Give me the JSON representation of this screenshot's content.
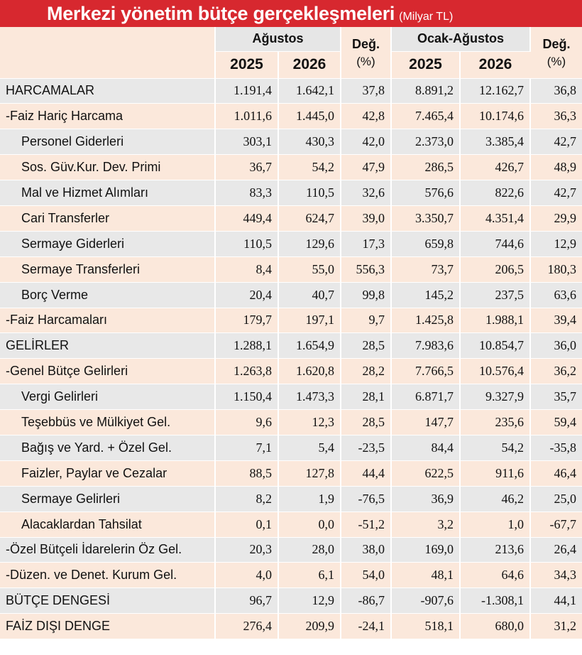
{
  "title": "Merkezi yönetim bütçe gerçekleşmeleri",
  "unit": "(Milyar TL)",
  "headers": {
    "group_month": "Ağustos",
    "group_ytd": "Ocak-Ağustos",
    "change_label": "Değ.",
    "change_unit": "(%)",
    "year_a": "2025",
    "year_b": "2026"
  },
  "rows": [
    {
      "label": "HARCAMALAR",
      "indent": false,
      "m2025": "1.191,4",
      "m2026": "1.642,1",
      "mchg": "37,8",
      "y2025": "8.891,2",
      "y2026": "12.162,7",
      "ychg": "36,8"
    },
    {
      "label": "-Faiz Hariç Harcama",
      "indent": false,
      "m2025": "1.011,6",
      "m2026": "1.445,0",
      "mchg": "42,8",
      "y2025": "7.465,4",
      "y2026": "10.174,6",
      "ychg": "36,3"
    },
    {
      "label": "Personel Giderleri",
      "indent": true,
      "m2025": "303,1",
      "m2026": "430,3",
      "mchg": "42,0",
      "y2025": "2.373,0",
      "y2026": "3.385,4",
      "ychg": "42,7"
    },
    {
      "label": "Sos. Güv.Kur. Dev. Primi",
      "indent": true,
      "m2025": "36,7",
      "m2026": "54,2",
      "mchg": "47,9",
      "y2025": "286,5",
      "y2026": "426,7",
      "ychg": "48,9"
    },
    {
      "label": "Mal ve Hizmet Alımları",
      "indent": true,
      "m2025": "83,3",
      "m2026": "110,5",
      "mchg": "32,6",
      "y2025": "576,6",
      "y2026": "822,6",
      "ychg": "42,7"
    },
    {
      "label": "Cari Transferler",
      "indent": true,
      "m2025": "449,4",
      "m2026": "624,7",
      "mchg": "39,0",
      "y2025": "3.350,7",
      "y2026": "4.351,4",
      "ychg": "29,9"
    },
    {
      "label": "Sermaye Giderleri",
      "indent": true,
      "m2025": "110,5",
      "m2026": "129,6",
      "mchg": "17,3",
      "y2025": "659,8",
      "y2026": "744,6",
      "ychg": "12,9"
    },
    {
      "label": "Sermaye Transferleri",
      "indent": true,
      "m2025": "8,4",
      "m2026": "55,0",
      "mchg": "556,3",
      "y2025": "73,7",
      "y2026": "206,5",
      "ychg": "180,3"
    },
    {
      "label": "Borç Verme",
      "indent": true,
      "m2025": "20,4",
      "m2026": "40,7",
      "mchg": "99,8",
      "y2025": "145,2",
      "y2026": "237,5",
      "ychg": "63,6"
    },
    {
      "label": "-Faiz Harcamaları",
      "indent": false,
      "m2025": "179,7",
      "m2026": "197,1",
      "mchg": "9,7",
      "y2025": "1.425,8",
      "y2026": "1.988,1",
      "ychg": "39,4"
    },
    {
      "label": "GELİRLER",
      "indent": false,
      "m2025": "1.288,1",
      "m2026": "1.654,9",
      "mchg": "28,5",
      "y2025": "7.983,6",
      "y2026": "10.854,7",
      "ychg": "36,0"
    },
    {
      "label": "-Genel Bütçe Gelirleri",
      "indent": false,
      "m2025": "1.263,8",
      "m2026": "1.620,8",
      "mchg": "28,2",
      "y2025": "7.766,5",
      "y2026": "10.576,4",
      "ychg": "36,2"
    },
    {
      "label": "Vergi Gelirleri",
      "indent": true,
      "m2025": "1.150,4",
      "m2026": "1.473,3",
      "mchg": "28,1",
      "y2025": "6.871,7",
      "y2026": "9.327,9",
      "ychg": "35,7"
    },
    {
      "label": "Teşebbüs ve Mülkiyet Gel.",
      "indent": true,
      "m2025": "9,6",
      "m2026": "12,3",
      "mchg": "28,5",
      "y2025": "147,7",
      "y2026": "235,6",
      "ychg": "59,4"
    },
    {
      "label": "Bağış ve Yard. + Özel Gel.",
      "indent": true,
      "m2025": "7,1",
      "m2026": "5,4",
      "mchg": "-23,5",
      "y2025": "84,4",
      "y2026": "54,2",
      "ychg": "-35,8"
    },
    {
      "label": "Faizler, Paylar ve Cezalar",
      "indent": true,
      "m2025": "88,5",
      "m2026": "127,8",
      "mchg": "44,4",
      "y2025": "622,5",
      "y2026": "911,6",
      "ychg": "46,4"
    },
    {
      "label": "Sermaye Gelirleri",
      "indent": true,
      "m2025": "8,2",
      "m2026": "1,9",
      "mchg": "-76,5",
      "y2025": "36,9",
      "y2026": "46,2",
      "ychg": "25,0"
    },
    {
      "label": "Alacaklardan Tahsilat",
      "indent": true,
      "m2025": "0,1",
      "m2026": "0,0",
      "mchg": "-51,2",
      "y2025": "3,2",
      "y2026": "1,0",
      "ychg": "-67,7"
    },
    {
      "label": "-Özel Bütçeli İdarelerin Öz Gel.",
      "indent": false,
      "m2025": "20,3",
      "m2026": "28,0",
      "mchg": "38,0",
      "y2025": "169,0",
      "y2026": "213,6",
      "ychg": "26,4"
    },
    {
      "label": "-Düzen. ve Denet. Kurum Gel.",
      "indent": false,
      "m2025": "4,0",
      "m2026": "6,1",
      "mchg": "54,0",
      "y2025": "48,1",
      "y2026": "64,6",
      "ychg": "34,3"
    },
    {
      "label": "BÜTÇE DENGESİ",
      "indent": false,
      "m2025": "96,7",
      "m2026": "12,9",
      "mchg": "-86,7",
      "y2025": "-907,6",
      "y2026": "-1.308,1",
      "ychg": "44,1"
    },
    {
      "label": "FAİZ DIŞI DENGE",
      "indent": false,
      "m2025": "276,4",
      "m2026": "209,9",
      "mchg": "-24,1",
      "y2025": "518,1",
      "y2026": "680,0",
      "ychg": "31,2"
    }
  ],
  "colors": {
    "title_bg": "#d7282f",
    "row_gray": "#e8e8e8",
    "row_peach": "#fbe8db"
  }
}
